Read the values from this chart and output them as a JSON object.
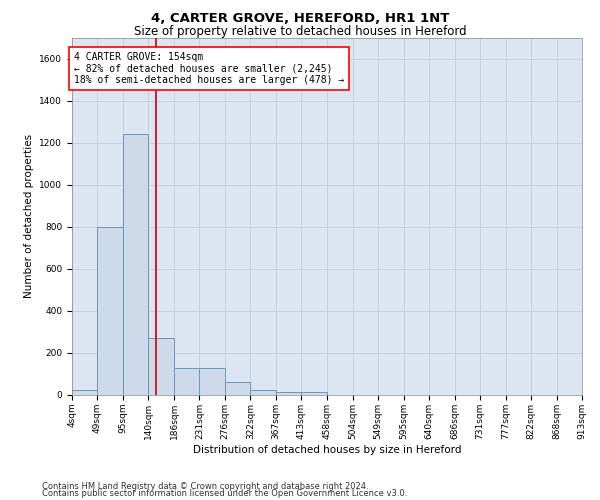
{
  "title": "4, CARTER GROVE, HEREFORD, HR1 1NT",
  "subtitle": "Size of property relative to detached houses in Hereford",
  "xlabel": "Distribution of detached houses by size in Hereford",
  "ylabel": "Number of detached properties",
  "footer_line1": "Contains HM Land Registry data © Crown copyright and database right 2024.",
  "footer_line2": "Contains public sector information licensed under the Open Government Licence v3.0.",
  "annotation_line1": "4 CARTER GROVE: 154sqm",
  "annotation_line2": "← 82% of detached houses are smaller (2,245)",
  "annotation_line3": "18% of semi-detached houses are larger (478) →",
  "bar_edges": [
    4,
    49,
    95,
    140,
    186,
    231,
    276,
    322,
    367,
    413,
    458,
    504,
    549,
    595,
    640,
    686,
    731,
    777,
    822,
    868,
    913
  ],
  "bar_heights": [
    25,
    800,
    1240,
    270,
    130,
    130,
    60,
    25,
    15,
    15,
    0,
    0,
    0,
    0,
    0,
    0,
    0,
    0,
    0,
    0
  ],
  "bar_color": "#ccdaea",
  "bar_edge_color": "#6699bb",
  "red_line_x": 154,
  "red_line_color": "#cc0000",
  "ylim": [
    0,
    1700
  ],
  "yticks": [
    0,
    200,
    400,
    600,
    800,
    1000,
    1200,
    1400,
    1600
  ],
  "grid_color": "#c8d0de",
  "bg_color": "#dce6f2",
  "title_fontsize": 9.5,
  "subtitle_fontsize": 8.5,
  "axis_label_fontsize": 7.5,
  "tick_fontsize": 6.5,
  "annotation_fontsize": 7,
  "footer_fontsize": 6
}
